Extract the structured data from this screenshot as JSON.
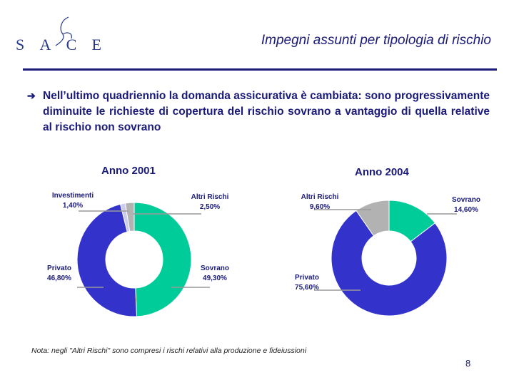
{
  "logo": {
    "letters": [
      "S",
      "A",
      "C",
      "E"
    ]
  },
  "title": "Impegni assunti per tipologia di rischio",
  "bullet": "Nell’ultimo quadriennio la domanda assicurativa è cambiata: sono progressivamente diminuite le richieste di copertura del rischio sovrano a vantaggio di quella relative al rischio non sovrano",
  "colors": {
    "sovrano": "#00CC99",
    "privato": "#3333CC",
    "altri": "#B2B2B2",
    "investimenti": "#CCCCEE"
  },
  "chart_data": [
    {
      "type": "pie",
      "title": "Anno 2001",
      "slices": [
        {
          "name": "Sovrano",
          "value": 49.3,
          "label": "49,30%"
        },
        {
          "name": "Privato",
          "value": 46.8,
          "label": "46,80%"
        },
        {
          "name": "Investimenti",
          "value": 1.4,
          "label": "1,40%"
        },
        {
          "name": "Altri Rischi",
          "value": 2.5,
          "label": "2,50%"
        }
      ]
    },
    {
      "type": "pie",
      "title": "Anno 2004",
      "slices": [
        {
          "name": "Sovrano",
          "value": 14.6,
          "label": "14,60%"
        },
        {
          "name": "Privato",
          "value": 75.6,
          "label": "75,60%"
        },
        {
          "name": "Altri Rischi",
          "value": 9.6,
          "label": "9,60%"
        }
      ]
    }
  ],
  "note": "Nota: negli \"Altri Rischi\" sono compresi i rischi relativi alla produzione e fideiussioni",
  "page_number": "8"
}
